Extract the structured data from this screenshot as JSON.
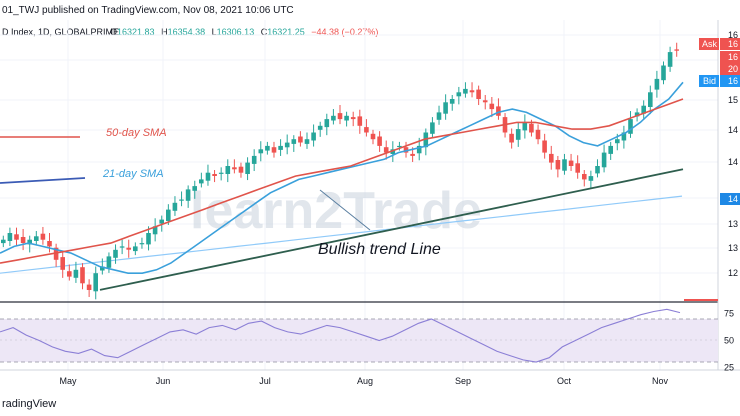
{
  "header": {
    "published_line": "01_TWJ published on TradingView.com, Nov 08, 2021 10:06 UTC",
    "symbol_line": "D Index, 1D, GLOBALPRIME",
    "ohlc": {
      "open_label": "O",
      "open": "16321.83",
      "high_label": "H",
      "high": "16354.38",
      "low_label": "L",
      "low": "16306.13",
      "close_label": "C",
      "close": "16321.25",
      "change": "−44.38 (−0.27%)"
    }
  },
  "price_tags": {
    "ask_label": "Ask",
    "ask_value": "16",
    "mid_value_1": "16",
    "mid_value_2": "20",
    "bid_label": "Bid",
    "bid_value": "16",
    "blue_tag_value": "14"
  },
  "price_axis_labels": [
    "16",
    "15",
    "15",
    "14",
    "14",
    "13",
    "13",
    "13",
    "12"
  ],
  "rsi_axis_labels": [
    "75",
    "50",
    "25"
  ],
  "month_labels": [
    "May",
    "Jun",
    "Jul",
    "Aug",
    "Sep",
    "Oct",
    "Nov"
  ],
  "annotations": {
    "sma50": "50-day SMA",
    "sma21": "21-day SMA",
    "trend": "Bullish trend Line",
    "watermark": "learn2Trade"
  },
  "footer": {
    "brand": "radingView"
  },
  "colors": {
    "up": "#26a69a",
    "down": "#ef5350",
    "sma50": "#e0544b",
    "sma21": "#3aa0db",
    "sma_long": "#90caf9",
    "trend": "#2e5e4e",
    "rsi": "#8b7fd6",
    "rsi_band": "#ede7f6"
  },
  "chart_data": [
    {
      "type": "candlestick",
      "title": "",
      "months": [
        "May",
        "Jun",
        "Jul",
        "Aug",
        "Sep",
        "Oct",
        "Nov"
      ],
      "close_path": [
        13.5,
        13.6,
        13.5,
        13.45,
        13.5,
        13.55,
        13.5,
        13.4,
        13.2,
        13.05,
        12.95,
        13.05,
        12.85,
        12.75,
        13.0,
        13.1,
        13.25,
        13.35,
        13.4,
        13.35,
        13.4,
        13.45,
        13.6,
        13.7,
        13.8,
        13.95,
        14.05,
        14.1,
        14.25,
        14.3,
        14.4,
        14.5,
        14.45,
        14.5,
        14.6,
        14.55,
        14.5,
        14.65,
        14.75,
        14.85,
        14.9,
        14.8,
        14.9,
        14.95,
        15.0,
        14.95,
        15.0,
        15.1,
        15.2,
        15.3,
        15.35,
        15.3,
        15.35,
        15.3,
        15.2,
        15.1,
        15.0,
        14.9,
        14.8,
        14.85,
        14.9,
        14.8,
        14.75,
        14.9,
        15.1,
        15.25,
        15.4,
        15.55,
        15.6,
        15.7,
        15.75,
        15.7,
        15.6,
        15.55,
        15.45,
        15.35,
        15.1,
        14.95,
        15.15,
        15.25,
        15.1,
        15.0,
        14.8,
        14.65,
        14.55,
        14.7,
        14.6,
        14.5,
        14.4,
        14.45,
        14.6,
        14.8,
        14.9,
        15.0,
        15.1,
        15.3,
        15.4,
        15.5,
        15.7,
        15.9,
        16.1,
        16.3,
        16.32
      ],
      "sma21_path": [
        13.3,
        13.4,
        13.45,
        13.4,
        13.35,
        13.3,
        13.2,
        13.1,
        13.05,
        13.0,
        13.0,
        13.05,
        13.15,
        13.3,
        13.45,
        13.6,
        13.75,
        13.9,
        14.05,
        14.2,
        14.3,
        14.4,
        14.45,
        14.5,
        14.55,
        14.6,
        14.65,
        14.7,
        14.8,
        14.85,
        14.9,
        15.0,
        15.1,
        15.2,
        15.3,
        15.4,
        15.45,
        15.4,
        15.3,
        15.2,
        15.05,
        14.95,
        14.9,
        15.0,
        15.1,
        15.25,
        15.45,
        15.6,
        15.85
      ],
      "sma50_path": [
        13.15,
        13.2,
        13.25,
        13.3,
        13.35,
        13.4,
        13.45,
        13.55,
        13.65,
        13.75,
        13.85,
        13.95,
        14.05,
        14.15,
        14.25,
        14.35,
        14.45,
        14.5,
        14.55,
        14.6,
        14.7,
        14.8,
        14.9,
        15.0,
        15.05,
        15.1,
        15.15,
        15.2,
        15.25,
        15.25,
        15.2,
        15.15,
        15.15,
        15.2,
        15.3,
        15.4,
        15.5,
        15.6
      ],
      "sma_long_path": [
        13.0,
        13.05,
        13.1,
        13.15,
        13.2,
        13.25,
        13.3,
        13.35,
        13.4,
        13.45,
        13.5,
        13.55,
        13.6,
        13.65,
        13.7,
        13.75,
        13.8,
        13.85,
        13.9,
        13.95,
        14.0,
        14.05,
        14.1,
        14.15
      ],
      "trend_line": {
        "start": 12.75,
        "end": 14.55
      }
    },
    {
      "type": "line",
      "title": "",
      "ylim": [
        25,
        80
      ],
      "bands": [
        30,
        70
      ],
      "rsi_path": [
        58,
        62,
        55,
        50,
        44,
        40,
        38,
        42,
        36,
        34,
        40,
        46,
        52,
        58,
        60,
        56,
        62,
        64,
        60,
        66,
        68,
        62,
        58,
        56,
        60,
        64,
        62,
        58,
        54,
        50,
        54,
        60,
        66,
        70,
        64,
        58,
        52,
        46,
        40,
        36,
        32,
        30,
        34,
        44,
        50,
        56,
        62,
        66,
        70,
        74,
        77,
        79,
        76
      ]
    }
  ]
}
